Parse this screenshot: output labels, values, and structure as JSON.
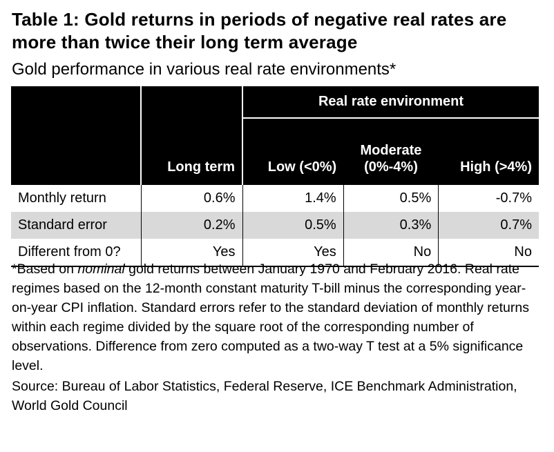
{
  "title": "Table 1: Gold returns in periods of negative real rates are more than twice their long term average",
  "subtitle": "Gold performance in various real rate environments*",
  "table": {
    "group_header": "Real rate environment",
    "columns": [
      "Long term",
      "Low (<0%)",
      "Moderate (0%-4%)",
      "High (>4%)"
    ],
    "column_moderate_line1": "Moderate",
    "column_moderate_line2": "(0%-4%)",
    "rows": [
      {
        "label": "Monthly return",
        "values": [
          "0.6%",
          "1.4%",
          "0.5%",
          "-0.7%"
        ]
      },
      {
        "label": "Standard error",
        "values": [
          "0.2%",
          "0.5%",
          "0.3%",
          "0.7%"
        ]
      },
      {
        "label": "Different from 0?",
        "values": [
          "Yes",
          "Yes",
          "No",
          "No"
        ]
      }
    ]
  },
  "footnote": {
    "prefix": "*Based on ",
    "emphasis": "nominal",
    "text": " gold returns between January 1970 and February 2016. Real rate regimes based on the 12-month constant maturity T-bill minus the corresponding year-on-year CPI inflation. Standard errors refer to the standard deviation of monthly returns within each regime divided by the square root of the corresponding number of observations. Difference from zero computed as a two-way T test at a 5% significance level."
  },
  "source": "Source: Bureau of Labor Statistics, Federal Reserve, ICE Benchmark Administration, World Gold Council"
}
